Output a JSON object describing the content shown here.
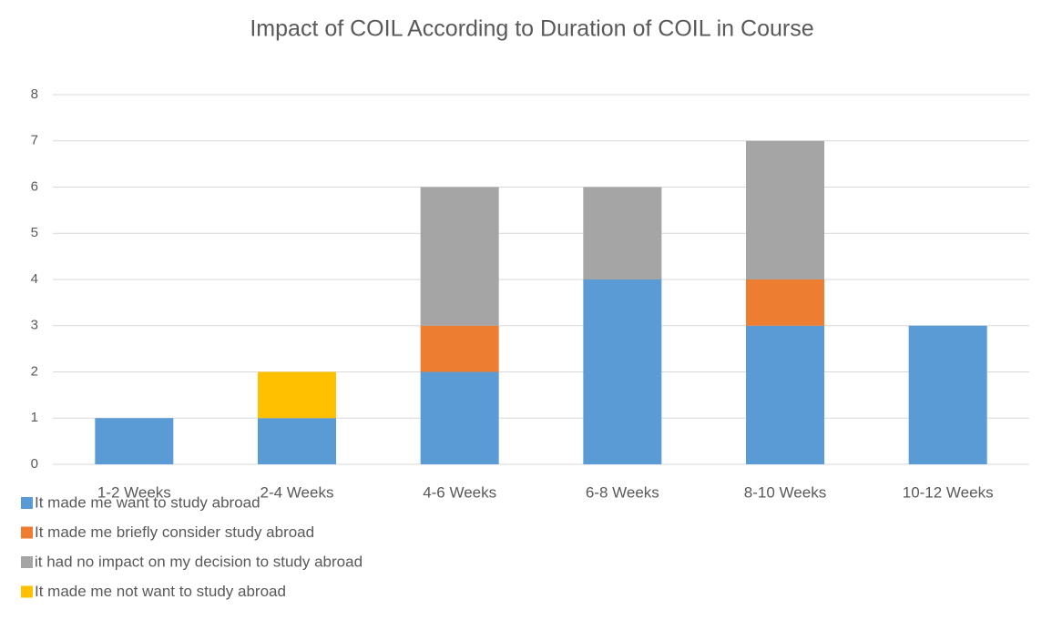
{
  "chart_data": {
    "type": "bar",
    "stacked": true,
    "title": "Impact of COIL According to Duration of COIL in Course",
    "categories": [
      "1-2 Weeks",
      "2-4 Weeks",
      "4-6 Weeks",
      "6-8 Weeks",
      "8-10 Weeks",
      "10-12 Weeks"
    ],
    "series": [
      {
        "name": "It made me want to study abroad",
        "color": "#5b9bd5",
        "values": [
          1,
          1,
          2,
          4,
          3,
          3
        ]
      },
      {
        "name": "It made me briefly consider study abroad",
        "color": "#ed7d31",
        "values": [
          0,
          0,
          1,
          0,
          1,
          0
        ]
      },
      {
        "name": "it had no impact on my decision to study abroad",
        "color": "#a5a5a5",
        "values": [
          0,
          0,
          3,
          2,
          3,
          0
        ]
      },
      {
        "name": "It made me not want to study abroad",
        "color": "#ffc000",
        "values": [
          0,
          1,
          0,
          0,
          0,
          0
        ]
      }
    ],
    "ylim": [
      0,
      8
    ],
    "yticks": [
      0,
      1,
      2,
      3,
      4,
      5,
      6,
      7,
      8
    ],
    "grid": true,
    "legend": "bottom-left"
  }
}
